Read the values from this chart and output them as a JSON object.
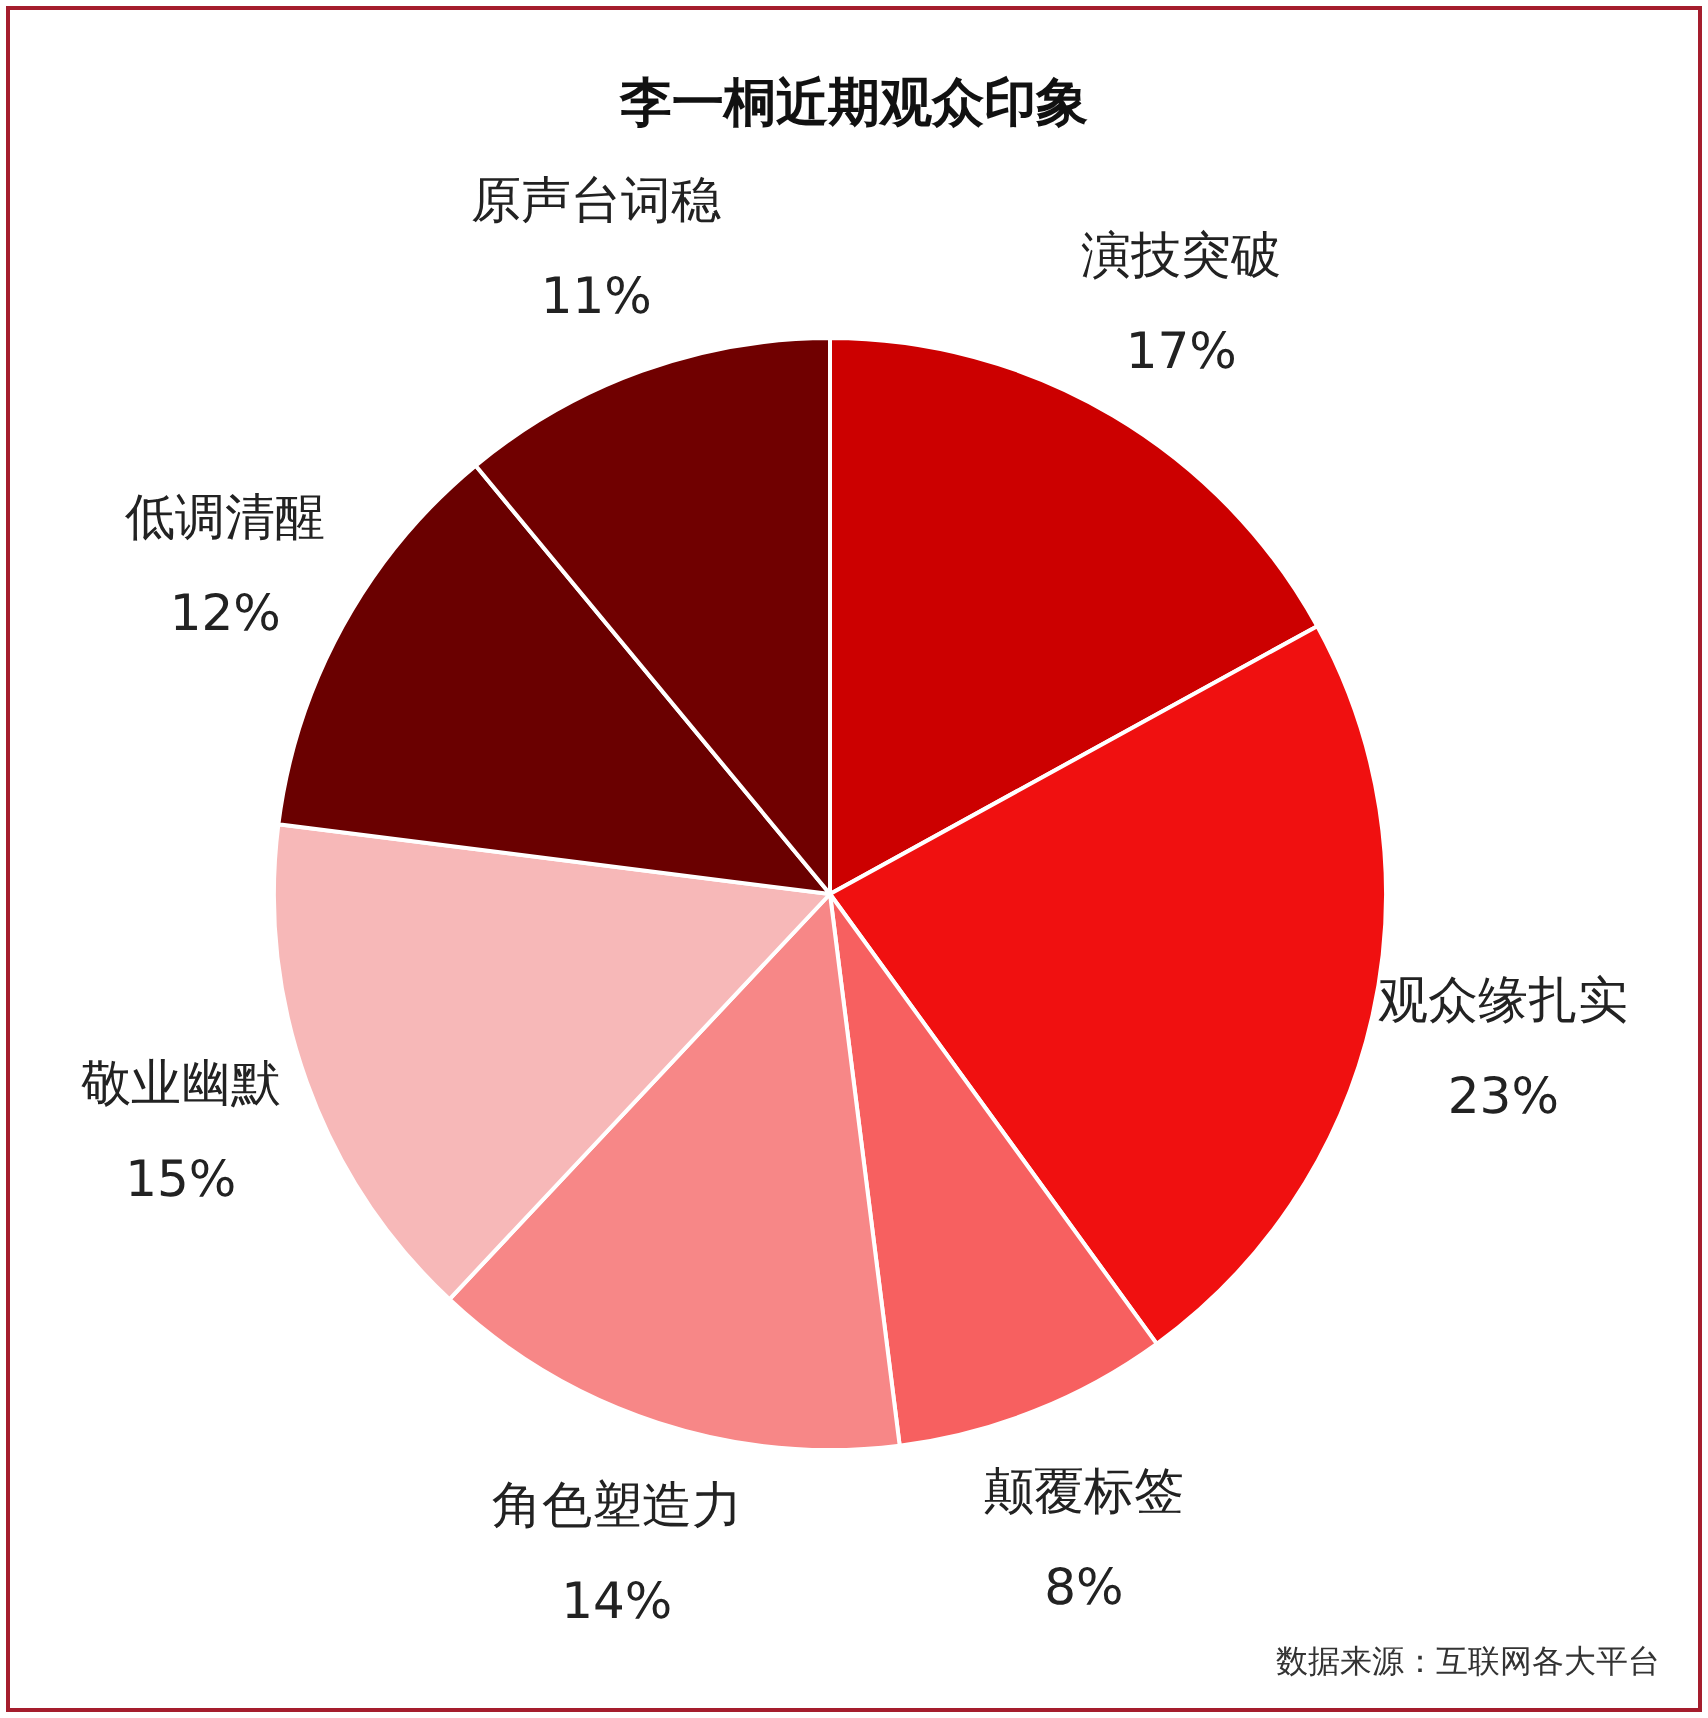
{
  "chart_data": {
    "type": "pie",
    "title": "李一桐近期观众印象",
    "categories": [
      "演技突破",
      "观众缘扎实",
      "颠覆标签",
      "角色塑造力",
      "敬业幽默",
      "低调清醒",
      "原声台词稳"
    ],
    "values": [
      17,
      23,
      8,
      14,
      15,
      12,
      11
    ],
    "value_labels": [
      "17%",
      "23%",
      "8%",
      "14%",
      "15%",
      "12%",
      "11%"
    ],
    "colors": [
      "#cc0000",
      "#f01010",
      "#f76060",
      "#f78787",
      "#f7b8b8",
      "#6a0000",
      "#700000"
    ],
    "annotations": [
      "数据来源：互联网各大平台"
    ]
  }
}
